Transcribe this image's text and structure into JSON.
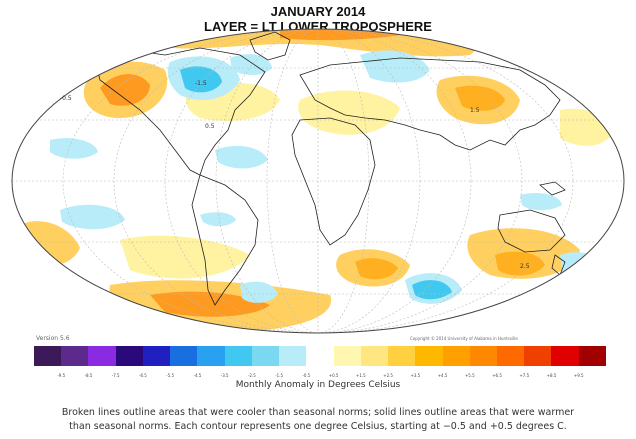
{
  "header": {
    "title": "JANUARY 2014",
    "layer": "LAYER = LT LOWER TROPOSPHERE"
  },
  "map": {
    "projection": "Mollweide",
    "contour_labels": [
      "-0.5",
      "0.5",
      "1.5",
      "2.5",
      "-1.5"
    ]
  },
  "footer": {
    "version": "Version 5.6",
    "copyright": "Copyright © 2014 University of Alabama in Huntsville",
    "colorbar_title": "Monthly Anomaly in Degrees Celsius",
    "caption_line1": "Broken lines outline areas that were cooler than seasonal norms; solid lines outline areas that were warmer",
    "caption_line2": "than seasonal norms. Each contour represents one degree Celsius, starting at −0.5 and +0.5 degrees C."
  },
  "colorbar": {
    "colors": [
      "#3c1a5a",
      "#5b2a8c",
      "#8a2be2",
      "#2a0a7a",
      "#2020c0",
      "#1a6fe0",
      "#2aa0f0",
      "#40c8f0",
      "#7ad8f0",
      "#b8ecf8",
      "#ffffff",
      "#fff6b0",
      "#ffe680",
      "#ffd040",
      "#ffb800",
      "#ffa000",
      "#ff8800",
      "#ff6a00",
      "#f04000",
      "#e00000",
      "#a00000"
    ],
    "ticks": [
      "-9.5",
      "-8.5",
      "-7.5",
      "-6.5",
      "-5.5",
      "-4.5",
      "-3.5",
      "-2.5",
      "-1.5",
      "-0.5",
      "+0.5",
      "+1.5",
      "+2.5",
      "+3.5",
      "+4.5",
      "+5.5",
      "+6.5",
      "+7.5",
      "+8.5",
      "+9.5"
    ]
  }
}
